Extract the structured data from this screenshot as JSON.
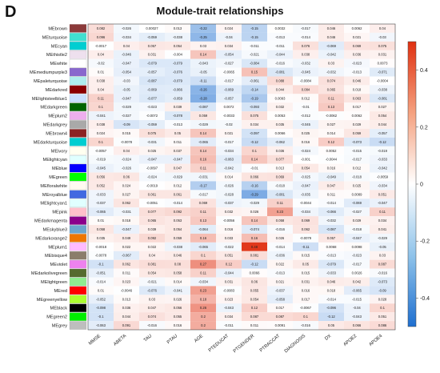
{
  "panel_label": "D",
  "chart_data": {
    "type": "heatmap",
    "title": "Module-trait relationships",
    "columns": [
      "MMSE",
      "ABETA",
      "TAU",
      "PTAU",
      "AGE",
      "PTEDUCAT",
      "PTGENDER",
      "PTRACCAT",
      "DIAGNOSIS",
      "DX",
      "APOE2",
      "APOE4"
    ],
    "rows": [
      {
        "name": "MEbrown",
        "color": "#8B3A3A",
        "values": [
          0.082,
          -0.026,
          0.00027,
          0.013,
          -0.22,
          0.024,
          -0.15,
          0.0032,
          -0.017,
          0.046,
          0.0062,
          0.04
        ]
      },
      {
        "name": "MEturquoise",
        "color": "#40E0D0",
        "values": [
          0.096,
          -0.034,
          -0.059,
          -0.038,
          -0.25,
          -0.04,
          -0.15,
          -0.013,
          -0.014,
          0.046,
          0.021,
          -0.03
        ]
      },
      {
        "name": "MEcyan",
        "color": "#00CED1",
        "values": [
          -0.0017,
          0.04,
          0.057,
          0.054,
          0.03,
          0.034,
          -0.011,
          -0.011,
          0.076,
          -0.069,
          0.069,
          0.075
        ]
      },
      {
        "name": "MEthistle2",
        "color": "#EEE0EE",
        "values": [
          0.04,
          -0.046,
          0.031,
          -0.004,
          0.14,
          -0.054,
          -0.021,
          -0.044,
          0.038,
          -0.042,
          0.036,
          0.031
        ]
      },
      {
        "name": "MEwhite",
        "color": "#FFFFFF",
        "values": [
          -0.02,
          -0.047,
          -0.079,
          -0.079,
          -0.043,
          -0.027,
          -0.084,
          -0.016,
          -0.032,
          0.03,
          -0.023,
          0.0073
        ]
      },
      {
        "name": "MEmediumpurple3",
        "color": "#8968CD",
        "values": [
          0.01,
          -0.054,
          -0.057,
          -0.076,
          -0.05,
          -0.0065,
          0.15,
          -0.081,
          -0.045,
          -0.032,
          -0.013,
          -0.071
        ]
      },
      {
        "name": "MEpaleturquoise",
        "color": "#AFEEEE",
        "values": [
          0.038,
          -0.03,
          -0.087,
          -0.079,
          -0.11,
          -0.017,
          -0.061,
          0.088,
          -0.0084,
          0.074,
          0.046,
          -0.0004
        ]
      },
      {
        "name": "MEdarkred",
        "color": "#8B0000",
        "values": [
          0.04,
          -0.05,
          -0.069,
          -0.066,
          -0.26,
          -0.069,
          -0.14,
          0.044,
          0.084,
          0.065,
          0.018,
          -0.038
        ]
      },
      {
        "name": "MElightsteelblue1",
        "color": "#CAE1FF",
        "values": [
          0.11,
          -0.047,
          -0.077,
          -0.059,
          -0.28,
          -0.057,
          -0.19,
          0.0093,
          0.012,
          0.11,
          0.063,
          -0.081
        ]
      },
      {
        "name": "MEdarkgreen",
        "color": "#006400",
        "values": [
          0.1,
          -0.029,
          -0.023,
          0.039,
          -0.087,
          0.0072,
          -0.093,
          0.032,
          -0.01,
          0.13,
          0.017,
          0.027
        ]
      },
      {
        "name": "MEplum2",
        "color": "#EEAEEE",
        "values": [
          -0.041,
          -0.027,
          -0.0072,
          -0.078,
          0.059,
          -0.0033,
          0.075,
          0.0053,
          -0.012,
          -0.0062,
          0.0062,
          0.054
        ]
      },
      {
        "name": "MEdarkgrey",
        "color": "#A9A9A9",
        "values": [
          0.038,
          -0.09,
          -0.059,
          -0.013,
          -0.029,
          -0.02,
          0.034,
          0.035,
          -0.045,
          0.027,
          0.029,
          0.044
        ]
      },
      {
        "name": "MEbrown4",
        "color": "#8B2323",
        "values": [
          0.024,
          0.015,
          0.075,
          0.05,
          0.14,
          0.021,
          -0.097,
          0.0066,
          0.025,
          0.014,
          0.059,
          -0.057
        ]
      },
      {
        "name": "MEdarkturquoise",
        "color": "#00CED1",
        "values": [
          0.1,
          -0.0078,
          -0.031,
          0.011,
          -0.065,
          -0.017,
          -0.12,
          -0.062,
          0.016,
          0.12,
          -0.073,
          -0.12
        ]
      },
      {
        "name": "MEivory",
        "color": "#FFFFF0",
        "values": [
          -0.0057,
          0.04,
          0.025,
          0.037,
          0.14,
          -0.034,
          0.1,
          0.036,
          -0.024,
          0.0052,
          -0.015,
          -0.019
        ]
      },
      {
        "name": "MElightcyan",
        "color": "#E0FFFF",
        "values": [
          -0.019,
          -0.024,
          -0.047,
          -0.047,
          0.16,
          -0.063,
          0.14,
          0.077,
          -0.001,
          -0.0044,
          -0.017,
          -0.033
        ]
      },
      {
        "name": "MEblue",
        "color": "#0000FF",
        "values": [
          -0.045,
          -0.026,
          -0.0097,
          0.047,
          0.11,
          -0.042,
          -0.01,
          0.013,
          0.054,
          0.016,
          0.012,
          -0.042
        ]
      },
      {
        "name": "MEgreen",
        "color": "#00FF00",
        "values": [
          0.056,
          0.06,
          -0.024,
          -0.029,
          -0.031,
          0.014,
          0.066,
          0.069,
          -0.025,
          -0.049,
          -0.018,
          -0.0059
        ]
      },
      {
        "name": "MEfloralwhite",
        "color": "#FFFAF0",
        "values": [
          0.052,
          0.024,
          -0.0019,
          0.012,
          -0.17,
          -0.026,
          -0.16,
          -0.018,
          -0.047,
          0.047,
          0.025,
          -0.034
        ]
      },
      {
        "name": "MEroyalblue",
        "color": "#4169E1",
        "values": [
          -0.033,
          0.027,
          0.061,
          0.061,
          -0.017,
          -0.028,
          -0.29,
          -0.081,
          -0.035,
          0.011,
          0.0089,
          0.051
        ]
      },
      {
        "name": "MElightcyan1",
        "color": "#E0FFFF",
        "values": [
          -0.037,
          0.062,
          -0.0051,
          -0.014,
          0.069,
          -0.037,
          -0.029,
          0.11,
          -0.0044,
          -0.014,
          -0.069,
          -0.047
        ]
      },
      {
        "name": "MEpink",
        "color": "#FFC0CB",
        "values": [
          -0.065,
          -0.031,
          0.077,
          0.092,
          0.11,
          0.032,
          0.026,
          0.23,
          -0.034,
          -0.066,
          -0.027,
          0.11
        ]
      },
      {
        "name": "MEdarkmagenta",
        "color": "#8B008B",
        "values": [
          0.01,
          0.018,
          0.065,
          0.053,
          0.13,
          -0.0056,
          0.14,
          0.058,
          0.069,
          -0.032,
          0.029,
          0.034
        ]
      },
      {
        "name": "MEskyblue3",
        "color": "#6CA6CD",
        "values": [
          0.058,
          -0.047,
          0.039,
          0.054,
          -0.064,
          0.016,
          -0.074,
          -0.016,
          0.062,
          -0.087,
          -0.018,
          0.041
        ]
      },
      {
        "name": "MEdarkorange2",
        "color": "#EE7600",
        "values": [
          0.035,
          0.049,
          0.092,
          0.059,
          0.16,
          0.033,
          0.16,
          0.026,
          -0.0079,
          0.057,
          -0.047,
          -0.029
        ]
      },
      {
        "name": "MEplum1",
        "color": "#FFBBFF",
        "values": [
          -0.0018,
          0.022,
          0.022,
          -0.038,
          -0.065,
          -0.022,
          0.48,
          -0.014,
          -0.11,
          0.0068,
          0.0098,
          -0.05
        ]
      },
      {
        "name": "MEbisque4",
        "color": "#8B7D6B",
        "values": [
          -0.0078,
          -0.067,
          0.04,
          0.046,
          0.1,
          0.051,
          0.081,
          -0.036,
          0.015,
          -0.013,
          -0.023,
          0.03
        ]
      },
      {
        "name": "MEviolet",
        "color": "#EE82EE",
        "values": [
          -0.1,
          0.062,
          0.081,
          0.08,
          0.27,
          0.12,
          -0.12,
          0.022,
          0.05,
          -0.079,
          -0.017,
          0.087
        ]
      },
      {
        "name": "MEdarkolivegreen",
        "color": "#556B2F",
        "values": [
          -0.051,
          0.011,
          0.054,
          0.058,
          0.11,
          -0.044,
          0.0066,
          -0.013,
          0.015,
          -0.033,
          0.0026,
          -0.016
        ]
      },
      {
        "name": "MElightgreen",
        "color": "#90EE90",
        "values": [
          -0.014,
          0.023,
          -0.021,
          0.014,
          -0.034,
          0.031,
          0.06,
          0.021,
          0.031,
          0.046,
          0.042,
          -0.073
        ]
      },
      {
        "name": "MEred",
        "color": "#FF0000",
        "values": [
          0.01,
          -0.0046,
          -0.076,
          -0.041,
          0.23,
          -0.0083,
          0.055,
          -0.037,
          0.016,
          0.018,
          -0.065,
          -0.09
        ]
      },
      {
        "name": "MEgreenyellow",
        "color": "#ADFF2F",
        "values": [
          -0.052,
          0.013,
          0.03,
          0.026,
          0.18,
          0.023,
          0.054,
          -0.058,
          0.017,
          -0.014,
          -0.015,
          0.028
        ]
      },
      {
        "name": "MEblack",
        "color": "#000000",
        "values": [
          -0.098,
          0.036,
          0.047,
          0.056,
          0.26,
          -0.043,
          0.12,
          0.017,
          -0.0067,
          -0.096,
          -0.04,
          0.1
        ]
      },
      {
        "name": "MEgreen2",
        "color": "#00EE00",
        "values": [
          -0.1,
          0.044,
          0.074,
          0.055,
          0.2,
          0.034,
          0.087,
          0.087,
          0.1,
          -0.12,
          -0.043,
          0.051
        ]
      },
      {
        "name": "MEgrey",
        "color": "#BEBEBE",
        "values": [
          -0.063,
          0.091,
          -0.016,
          0.016,
          0.2,
          -0.011,
          0.011,
          0.0091,
          -0.016,
          0.05,
          0.066,
          0.086
        ]
      }
    ],
    "colorbar": {
      "min": -0.5,
      "max": 0.5,
      "ticks": [
        0.4,
        0.2,
        0,
        -0.2,
        -0.4
      ],
      "low_color": "#2166ac",
      "mid_color": "#ffffff",
      "high_color": "#d73027"
    }
  }
}
